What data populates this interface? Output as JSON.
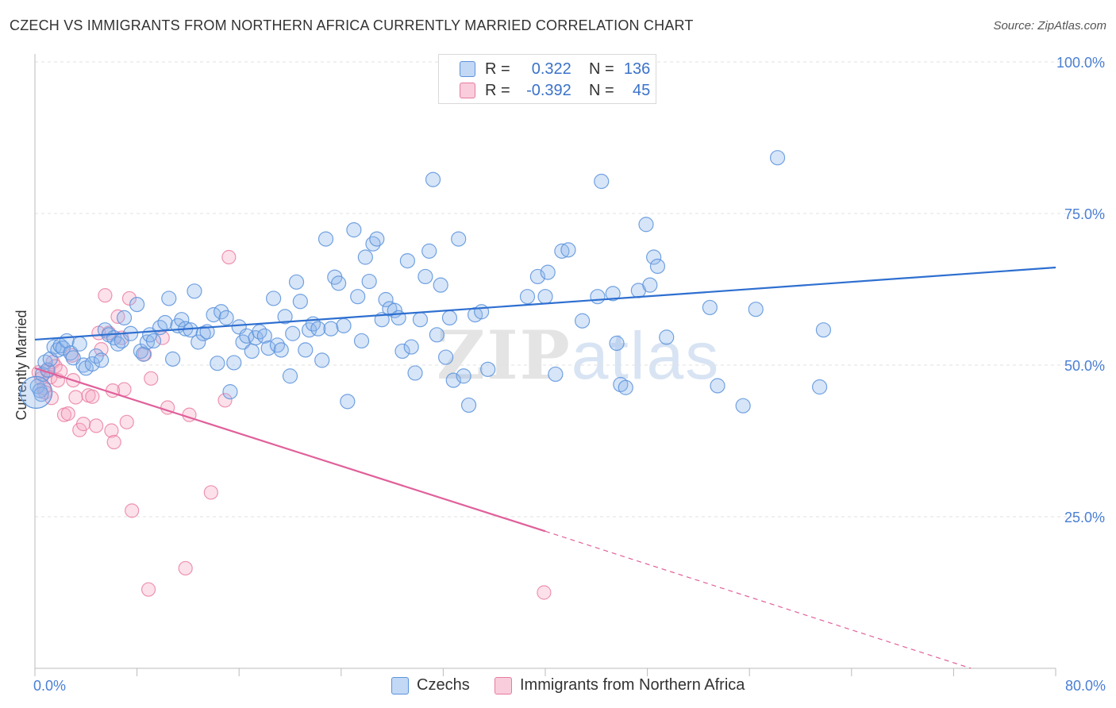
{
  "title": "CZECH VS IMMIGRANTS FROM NORTHERN AFRICA CURRENTLY MARRIED CORRELATION CHART",
  "source": "Source: ZipAtlas.com",
  "watermark": {
    "zip": "ZIP",
    "atlas": "atlas"
  },
  "legend": {
    "rows": [
      {
        "r_label": "R =",
        "r_value": "0.322",
        "n_label": "N =",
        "n_value": "136",
        "color": "#a8c8f0"
      },
      {
        "r_label": "R =",
        "r_value": "-0.392",
        "n_label": "N =",
        "n_value": "45",
        "color": "#f7b8cc"
      }
    ]
  },
  "bottom_legend": {
    "czechs": "Czechs",
    "immigrants": "Immigrants from Northern Africa"
  },
  "colors": {
    "blue": "#5b93dc",
    "blue_fill": "rgba(140,180,235,0.35)",
    "pink": "#e87aa0",
    "pink_fill": "rgba(245,170,195,0.35)",
    "blue_line": "#2e6fd0",
    "pink_line": "#e0609a"
  },
  "chart_data": {
    "type": "scatter",
    "title": "CZECH VS IMMIGRANTS FROM NORTHERN AFRICA CURRENTLY MARRIED CORRELATION CHART",
    "xlabel": "",
    "ylabel": "Currently Married",
    "xlim": [
      0,
      80
    ],
    "ylim": [
      0,
      100
    ],
    "x_tick_labels": [
      "0.0%",
      "80.0%"
    ],
    "y_ticks": [
      25,
      50,
      75,
      100
    ],
    "y_tick_labels": [
      "25.0%",
      "50.0%",
      "75.0%",
      "100.0%"
    ],
    "grid": true,
    "series": [
      {
        "name": "Czechs",
        "r": 0.322,
        "n": 136,
        "trend": {
          "x0": 0,
          "y0": 54.2,
          "x1": 80,
          "y1": 66.1,
          "dashed_from": null
        },
        "points": [
          [
            0.2,
            46.5
          ],
          [
            0.4,
            45.8
          ],
          [
            0.5,
            45.2
          ],
          [
            0.6,
            48.5
          ],
          [
            0.8,
            50.5
          ],
          [
            1.0,
            49.2
          ],
          [
            1.2,
            51.0
          ],
          [
            1.5,
            53.0
          ],
          [
            1.8,
            52.5
          ],
          [
            2.0,
            53.2
          ],
          [
            2.2,
            52.8
          ],
          [
            2.5,
            54.0
          ],
          [
            2.8,
            52.0
          ],
          [
            3.0,
            51.2
          ],
          [
            3.5,
            53.5
          ],
          [
            3.8,
            50.0
          ],
          [
            4.0,
            49.5
          ],
          [
            4.5,
            50.2
          ],
          [
            4.8,
            51.5
          ],
          [
            5.2,
            50.8
          ],
          [
            5.5,
            55.8
          ],
          [
            5.8,
            55.0
          ],
          [
            6.2,
            54.5
          ],
          [
            6.5,
            53.5
          ],
          [
            6.8,
            54.0
          ],
          [
            7.0,
            57.8
          ],
          [
            7.5,
            55.2
          ],
          [
            8.0,
            60.0
          ],
          [
            8.3,
            52.3
          ],
          [
            8.5,
            51.8
          ],
          [
            8.8,
            53.8
          ],
          [
            9.0,
            55.0
          ],
          [
            9.3,
            54.0
          ],
          [
            9.8,
            56.2
          ],
          [
            10.2,
            57.0
          ],
          [
            10.5,
            61.0
          ],
          [
            10.8,
            51.0
          ],
          [
            11.2,
            56.5
          ],
          [
            11.5,
            57.5
          ],
          [
            11.8,
            56.0
          ],
          [
            12.2,
            55.8
          ],
          [
            12.5,
            62.2
          ],
          [
            12.8,
            53.8
          ],
          [
            13.2,
            55.2
          ],
          [
            13.5,
            55.5
          ],
          [
            14.0,
            58.3
          ],
          [
            14.3,
            50.3
          ],
          [
            14.6,
            58.8
          ],
          [
            15.0,
            57.8
          ],
          [
            15.3,
            45.6
          ],
          [
            15.6,
            50.4
          ],
          [
            16.0,
            56.3
          ],
          [
            16.3,
            53.8
          ],
          [
            16.6,
            54.8
          ],
          [
            17.0,
            52.3
          ],
          [
            17.3,
            54.5
          ],
          [
            17.6,
            55.5
          ],
          [
            18.0,
            54.8
          ],
          [
            18.3,
            52.8
          ],
          [
            18.7,
            61.0
          ],
          [
            19.0,
            53.3
          ],
          [
            19.3,
            52.5
          ],
          [
            19.6,
            58.0
          ],
          [
            20.0,
            48.2
          ],
          [
            20.2,
            55.2
          ],
          [
            20.5,
            63.7
          ],
          [
            20.8,
            60.5
          ],
          [
            21.2,
            52.5
          ],
          [
            21.5,
            55.8
          ],
          [
            21.8,
            56.8
          ],
          [
            22.2,
            56.0
          ],
          [
            22.5,
            50.8
          ],
          [
            22.8,
            70.8
          ],
          [
            23.2,
            56.0
          ],
          [
            23.5,
            64.5
          ],
          [
            23.8,
            63.5
          ],
          [
            24.2,
            56.5
          ],
          [
            24.5,
            44.0
          ],
          [
            25.0,
            72.3
          ],
          [
            25.3,
            61.3
          ],
          [
            25.6,
            54.0
          ],
          [
            25.9,
            67.8
          ],
          [
            26.2,
            63.8
          ],
          [
            26.5,
            70.0
          ],
          [
            26.8,
            70.8
          ],
          [
            27.2,
            57.5
          ],
          [
            27.5,
            60.8
          ],
          [
            27.8,
            59.3
          ],
          [
            28.2,
            59.0
          ],
          [
            28.5,
            57.8
          ],
          [
            28.8,
            52.3
          ],
          [
            29.2,
            67.2
          ],
          [
            29.5,
            53.0
          ],
          [
            29.8,
            48.7
          ],
          [
            30.2,
            57.5
          ],
          [
            30.6,
            64.6
          ],
          [
            30.9,
            68.8
          ],
          [
            31.2,
            80.6
          ],
          [
            31.5,
            55.0
          ],
          [
            31.8,
            63.2
          ],
          [
            32.2,
            51.3
          ],
          [
            32.5,
            57.8
          ],
          [
            32.8,
            47.5
          ],
          [
            33.2,
            70.8
          ],
          [
            33.6,
            48.2
          ],
          [
            34.0,
            43.4
          ],
          [
            34.5,
            58.3
          ],
          [
            35.0,
            58.8
          ],
          [
            35.5,
            49.3
          ],
          [
            38.6,
            61.3
          ],
          [
            39.4,
            64.6
          ],
          [
            40.0,
            61.3
          ],
          [
            40.2,
            65.3
          ],
          [
            40.8,
            48.5
          ],
          [
            41.3,
            68.8
          ],
          [
            41.8,
            69.0
          ],
          [
            42.9,
            57.3
          ],
          [
            44.1,
            61.3
          ],
          [
            44.4,
            80.3
          ],
          [
            45.3,
            61.8
          ],
          [
            45.6,
            53.6
          ],
          [
            45.9,
            46.8
          ],
          [
            46.3,
            46.3
          ],
          [
            47.3,
            62.3
          ],
          [
            47.9,
            73.2
          ],
          [
            48.2,
            63.2
          ],
          [
            48.5,
            67.8
          ],
          [
            48.8,
            66.3
          ],
          [
            49.5,
            54.6
          ],
          [
            52.9,
            59.5
          ],
          [
            53.5,
            46.6
          ],
          [
            55.5,
            43.3
          ],
          [
            56.5,
            59.2
          ],
          [
            58.2,
            84.2
          ],
          [
            61.5,
            46.4
          ],
          [
            61.8,
            55.8
          ]
        ],
        "big_point": [
          0.1,
          45.5
        ]
      },
      {
        "name": "Immigrants from Northern Africa",
        "r": -0.392,
        "n": 45,
        "trend": {
          "x0": 0,
          "y0": 49.5,
          "x1": 40,
          "y1": 22.6,
          "dashed_from": 40,
          "dash_x1": 80,
          "dash_y1": -4.5
        },
        "points": [
          [
            0.3,
            48.8
          ],
          [
            0.5,
            47.8
          ],
          [
            0.7,
            46.2
          ],
          [
            0.8,
            45.5
          ],
          [
            1.0,
            49.0
          ],
          [
            1.2,
            48.0
          ],
          [
            1.4,
            50.5
          ],
          [
            1.6,
            49.8
          ],
          [
            1.8,
            47.5
          ],
          [
            2.0,
            49.0
          ],
          [
            2.3,
            41.8
          ],
          [
            2.6,
            42.0
          ],
          [
            3.0,
            47.5
          ],
          [
            3.2,
            44.7
          ],
          [
            3.5,
            39.3
          ],
          [
            3.8,
            40.3
          ],
          [
            4.2,
            45.0
          ],
          [
            4.5,
            44.8
          ],
          [
            4.8,
            40.0
          ],
          [
            5.0,
            55.3
          ],
          [
            5.2,
            52.6
          ],
          [
            5.5,
            61.5
          ],
          [
            5.8,
            55.3
          ],
          [
            6.0,
            39.2
          ],
          [
            6.2,
            37.3
          ],
          [
            6.5,
            58.0
          ],
          [
            6.8,
            54.5
          ],
          [
            7.0,
            46.0
          ],
          [
            7.2,
            40.6
          ],
          [
            7.4,
            61.0
          ],
          [
            7.6,
            26.0
          ],
          [
            8.6,
            51.8
          ],
          [
            8.9,
            13.0
          ],
          [
            9.1,
            47.8
          ],
          [
            10.0,
            54.5
          ],
          [
            10.4,
            43.0
          ],
          [
            11.8,
            16.5
          ],
          [
            12.1,
            41.8
          ],
          [
            13.8,
            29.0
          ],
          [
            14.9,
            44.2
          ],
          [
            15.2,
            67.8
          ],
          [
            39.9,
            12.5
          ],
          [
            1.3,
            44.6
          ],
          [
            2.9,
            51.6
          ],
          [
            6.1,
            45.8
          ]
        ]
      }
    ]
  }
}
